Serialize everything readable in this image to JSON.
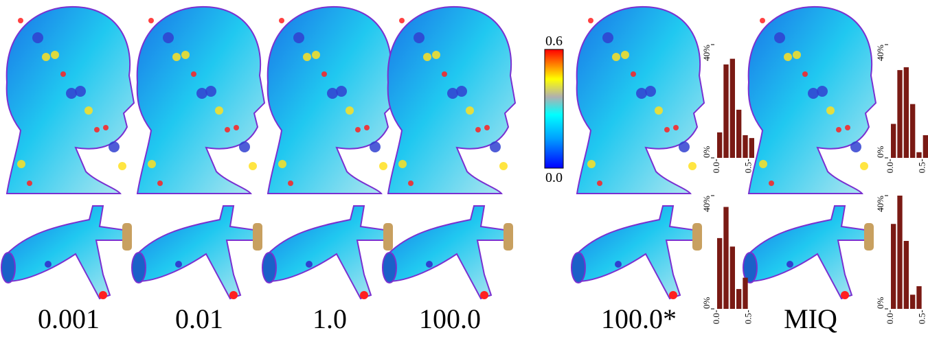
{
  "figure": {
    "captions": [
      "0.001",
      "0.01",
      "1.0",
      "100.0",
      "100.0*",
      "MIQ"
    ],
    "colorbar": {
      "range": [
        0,
        0.6
      ],
      "ticks": [
        {
          "value": 0,
          "label": "0.0"
        },
        {
          "value": 0.6,
          "label": "0.6"
        }
      ]
    }
  },
  "chart_data": [
    {
      "type": "histogram",
      "bins": [
        0,
        0.1,
        0.2,
        0.3,
        0.4,
        0.5,
        0.6
      ],
      "values": [
        9,
        33,
        35,
        17,
        8,
        7
      ],
      "color": "#7a1a14",
      "xlim": [
        0,
        0.6
      ],
      "ylim": [
        0,
        40
      ],
      "xticks": [
        {
          "value": 0,
          "label": "0.0"
        },
        {
          "value": 0.5,
          "label": "0.5"
        }
      ],
      "yticks": [
        {
          "value": 0,
          "label": "0%"
        },
        {
          "value": 40,
          "label": "40%"
        }
      ]
    },
    {
      "type": "histogram",
      "bins": [
        0,
        0.1,
        0.2,
        0.3,
        0.4,
        0.5,
        0.6
      ],
      "values": [
        12,
        31,
        32,
        19,
        2,
        8
      ],
      "color": "#7a1a14",
      "xlim": [
        0,
        0.6
      ],
      "ylim": [
        0,
        40
      ],
      "xticks": [
        {
          "value": 0,
          "label": "0.0"
        },
        {
          "value": 0.5,
          "label": "0.5"
        }
      ],
      "yticks": [
        {
          "value": 0,
          "label": "0%"
        },
        {
          "value": 40,
          "label": "40%"
        }
      ]
    },
    {
      "type": "histogram",
      "bins": [
        0,
        0.1,
        0.2,
        0.3,
        0.4,
        0.5
      ],
      "values": [
        25,
        36,
        22,
        7,
        11
      ],
      "color": "#7a1a14",
      "xlim": [
        0,
        0.6
      ],
      "ylim": [
        0,
        40
      ],
      "xticks": [
        {
          "value": 0,
          "label": "0.0"
        },
        {
          "value": 0.5,
          "label": "0.5"
        }
      ],
      "yticks": [
        {
          "value": 0,
          "label": "0%"
        },
        {
          "value": 40,
          "label": "40%"
        }
      ]
    },
    {
      "type": "histogram",
      "bins": [
        0,
        0.1,
        0.2,
        0.3,
        0.4,
        0.5
      ],
      "values": [
        30,
        40,
        24,
        5,
        8
      ],
      "color": "#7a1a14",
      "xlim": [
        0,
        0.6
      ],
      "ylim": [
        0,
        40
      ],
      "xticks": [
        {
          "value": 0,
          "label": "0.0"
        },
        {
          "value": 0.5,
          "label": "0.5"
        }
      ],
      "yticks": [
        {
          "value": 0,
          "label": "0%"
        },
        {
          "value": 40,
          "label": "40%"
        }
      ]
    }
  ]
}
